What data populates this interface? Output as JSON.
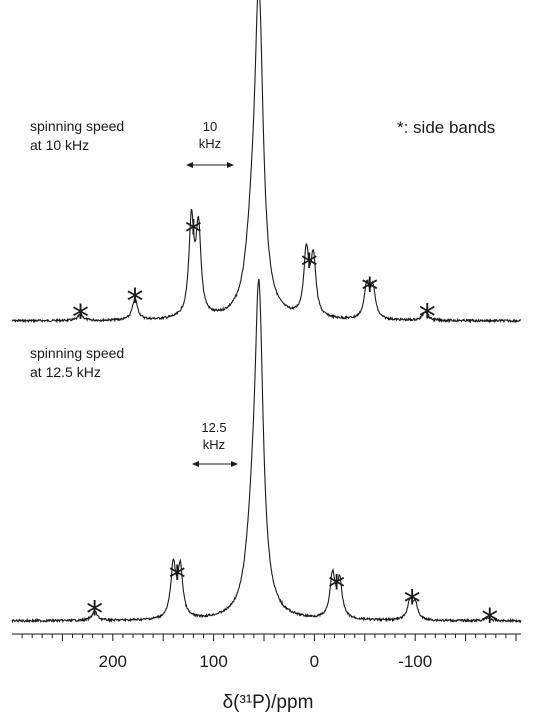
{
  "chart_data": {
    "type": "line",
    "xlabel": "δ(³¹P)/ppm",
    "xlim": [
      300,
      -205
    ],
    "x_reversed": true,
    "x_ticks": [
      200,
      100,
      0,
      -100
    ],
    "x_tick_labels": [
      "200",
      "100",
      "0",
      "-100"
    ],
    "legend_note": "*: side bands",
    "sideband_marker": "*",
    "series": [
      {
        "label_lines": [
          "spinning speed",
          "at 10 kHz"
        ],
        "spacing_lines": [
          "10",
          "kHz"
        ],
        "peaks": [
          {
            "x": 55,
            "height": 1.0,
            "width": 5
          },
          {
            "x": 62,
            "height": 0.2,
            "width": 7
          },
          {
            "x": 122,
            "height": 0.31,
            "width": 3
          },
          {
            "x": 115,
            "height": 0.28,
            "width": 3
          },
          {
            "x": 178,
            "height": 0.07,
            "width": 3
          },
          {
            "x": 232,
            "height": 0.02,
            "width": 3
          },
          {
            "x": 8,
            "height": 0.21,
            "width": 3
          },
          {
            "x": 1,
            "height": 0.19,
            "width": 3
          },
          {
            "x": -52,
            "height": 0.11,
            "width": 3
          },
          {
            "x": -58,
            "height": 0.1,
            "width": 3
          },
          {
            "x": -110,
            "height": 0.03,
            "width": 3
          }
        ],
        "sidebands": [
          232,
          178,
          120,
          5,
          -55,
          -112
        ]
      },
      {
        "label_lines": [
          "spinning speed",
          "at 12.5 kHz"
        ],
        "spacing_lines": [
          "12.5",
          "kHz"
        ],
        "peaks": [
          {
            "x": 55,
            "height": 1.0,
            "width": 5
          },
          {
            "x": 62,
            "height": 0.2,
            "width": 7
          },
          {
            "x": 140,
            "height": 0.17,
            "width": 3
          },
          {
            "x": 133,
            "height": 0.16,
            "width": 3
          },
          {
            "x": 218,
            "height": 0.03,
            "width": 3
          },
          {
            "x": -18,
            "height": 0.14,
            "width": 3
          },
          {
            "x": -25,
            "height": 0.12,
            "width": 3
          },
          {
            "x": -95,
            "height": 0.06,
            "width": 3
          },
          {
            "x": -100,
            "height": 0.05,
            "width": 3
          },
          {
            "x": -172,
            "height": 0.01,
            "width": 3
          }
        ],
        "sidebands": [
          218,
          136,
          -22,
          -97,
          -174
        ]
      }
    ]
  }
}
